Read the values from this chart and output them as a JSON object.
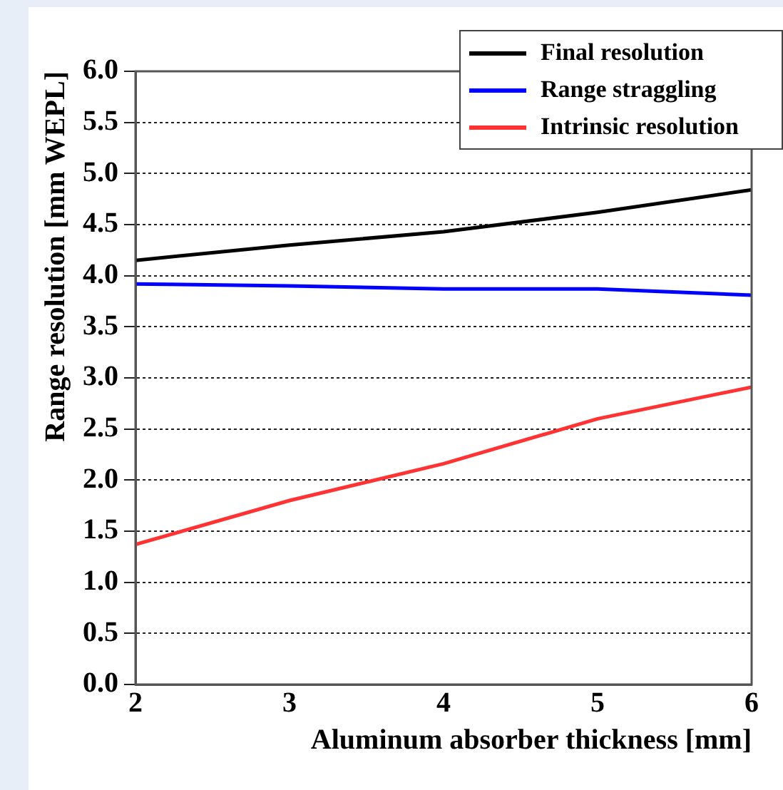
{
  "chart_data": {
    "type": "line",
    "xlabel": "Aluminum absorber thickness [mm]",
    "ylabel": "Range resolution [mm WEPL]",
    "x": [
      2,
      3,
      4,
      5,
      6
    ],
    "series": [
      {
        "name": "Final resolution",
        "color": "#000000",
        "values": [
          4.15,
          4.3,
          4.43,
          4.62,
          4.84
        ]
      },
      {
        "name": "Range straggling",
        "color": "#0000ff",
        "values": [
          3.92,
          3.9,
          3.87,
          3.87,
          3.81
        ]
      },
      {
        "name": "Intrinsic resolution",
        "color": "#ff3333",
        "values": [
          1.37,
          1.8,
          2.16,
          2.6,
          2.91
        ]
      }
    ],
    "xlim": [
      2,
      6
    ],
    "xticks": [
      2,
      3,
      4,
      5,
      6
    ],
    "ylim": [
      0,
      6
    ],
    "yticks": [
      {
        "value": 0,
        "label": "0.0"
      },
      {
        "value": 0.5,
        "label": "0.5"
      },
      {
        "value": 1,
        "label": "1.0"
      },
      {
        "value": 1.5,
        "label": "1.5"
      },
      {
        "value": 2,
        "label": "2.0"
      },
      {
        "value": 2.5,
        "label": "2.5"
      },
      {
        "value": 3,
        "label": "3.0"
      },
      {
        "value": 3.5,
        "label": "3.5"
      },
      {
        "value": 4,
        "label": "4.0"
      },
      {
        "value": 4.5,
        "label": "4.5"
      },
      {
        "value": 5,
        "label": "5.0"
      },
      {
        "value": 5.5,
        "label": "5.5"
      },
      {
        "value": 6,
        "label": "6.0"
      }
    ],
    "grid": "y",
    "legend": "top right",
    "marker": "none",
    "line_style": "solid"
  }
}
